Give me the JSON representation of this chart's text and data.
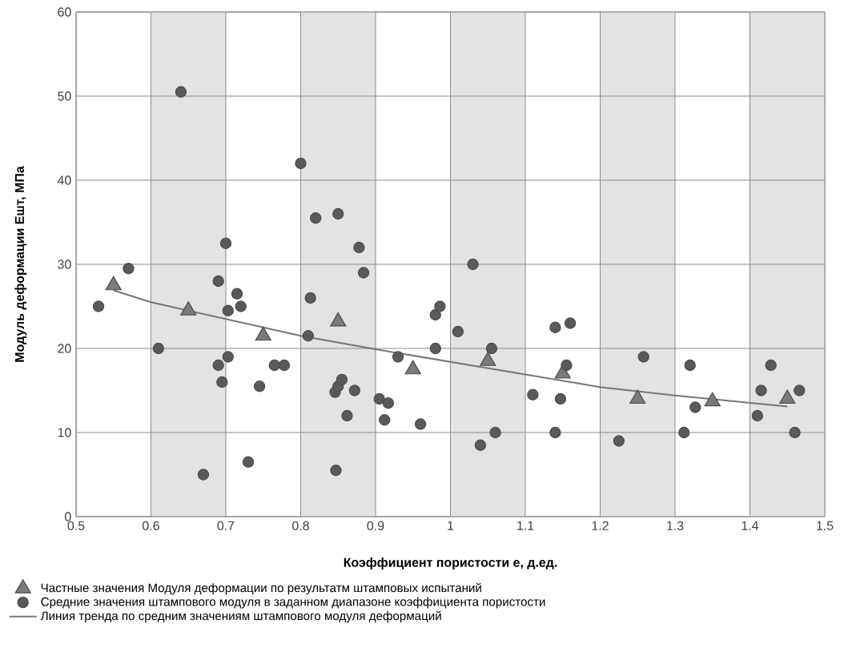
{
  "chart_data": {
    "type": "scatter",
    "xlabel": "Коэффициент пористости е, д.ед.",
    "ylabel": "Модуль деформации Ешт, МПа",
    "xlim": [
      0.5,
      1.5
    ],
    "ylim": [
      0,
      60
    ],
    "xticks": [
      0.5,
      0.6,
      0.7,
      0.8,
      0.9,
      1,
      1.1,
      1.2,
      1.3,
      1.4,
      1.5
    ],
    "yticks": [
      0,
      10,
      20,
      30,
      40,
      50,
      60
    ],
    "grid": true,
    "legend": "bottom",
    "bands": [
      {
        "axis": "x",
        "from": 0.6,
        "to": 0.7,
        "color": "#e3e3e3"
      },
      {
        "axis": "x",
        "from": 0.8,
        "to": 0.9,
        "color": "#e3e3e3"
      },
      {
        "axis": "x",
        "from": 1.0,
        "to": 1.1,
        "color": "#e3e3e3"
      },
      {
        "axis": "x",
        "from": 1.2,
        "to": 1.3,
        "color": "#e3e3e3"
      },
      {
        "axis": "x",
        "from": 1.4,
        "to": 1.5,
        "color": "#e3e3e3"
      }
    ],
    "series": [
      {
        "name": "Частные значения Модуля  деформации по результатм  штамповых испытаний",
        "type": "scatter",
        "marker": "triangle",
        "color": "#7a7a7a",
        "x": [
          0.55,
          0.65,
          0.75,
          0.85,
          0.95,
          1.05,
          1.15,
          1.25,
          1.35,
          1.45
        ],
        "values": [
          27.5,
          24.5,
          21.5,
          23.2,
          17.5,
          18.5,
          17,
          14,
          13.7,
          14
        ]
      },
      {
        "name": "Средние значения штампового модуля в заданном диапазоне коэффициента пористости",
        "type": "scatter",
        "marker": "circle",
        "color": "#5a5a5a",
        "x": [
          0.53,
          0.57,
          0.61,
          0.64,
          0.67,
          0.69,
          0.69,
          0.695,
          0.7,
          0.703,
          0.703,
          0.715,
          0.72,
          0.73,
          0.745,
          0.765,
          0.778,
          0.8,
          0.81,
          0.813,
          0.82,
          0.85,
          0.846,
          0.85,
          0.855,
          0.847,
          0.862,
          0.872,
          0.878,
          0.884,
          0.905,
          0.912,
          0.917,
          0.93,
          0.96,
          0.98,
          0.98,
          0.986,
          1.01,
          1.03,
          1.04,
          1.055,
          1.06,
          1.11,
          1.14,
          1.14,
          1.147,
          1.155,
          1.16,
          1.225,
          1.258,
          1.312,
          1.32,
          1.327,
          1.41,
          1.415,
          1.428,
          1.46,
          1.466
        ],
        "values": [
          25,
          29.5,
          20,
          50.5,
          5,
          18,
          28,
          16,
          32.5,
          24.5,
          19,
          26.5,
          25,
          6.5,
          15.5,
          18,
          18,
          42,
          21.5,
          26,
          35.5,
          36,
          14.8,
          15.5,
          16.3,
          5.5,
          12,
          15,
          32,
          29,
          14,
          11.5,
          13.5,
          19,
          11,
          20,
          24,
          25,
          22,
          30,
          8.5,
          20,
          10,
          14.5,
          22.5,
          10,
          14,
          18,
          23,
          9,
          19,
          10,
          18,
          13,
          12,
          15,
          18,
          10,
          15
        ]
      },
      {
        "name": "Линия тренда по средним значениям штампового модуля деформаций",
        "type": "line",
        "marker": "none",
        "color": "#777777",
        "x": [
          0.55,
          0.6,
          0.7,
          0.8,
          0.9,
          1.0,
          1.1,
          1.2,
          1.3,
          1.45
        ],
        "values": [
          26.9,
          25.5,
          23.5,
          21.5,
          19.9,
          18.4,
          16.9,
          15.4,
          14.4,
          13.1
        ]
      }
    ]
  }
}
